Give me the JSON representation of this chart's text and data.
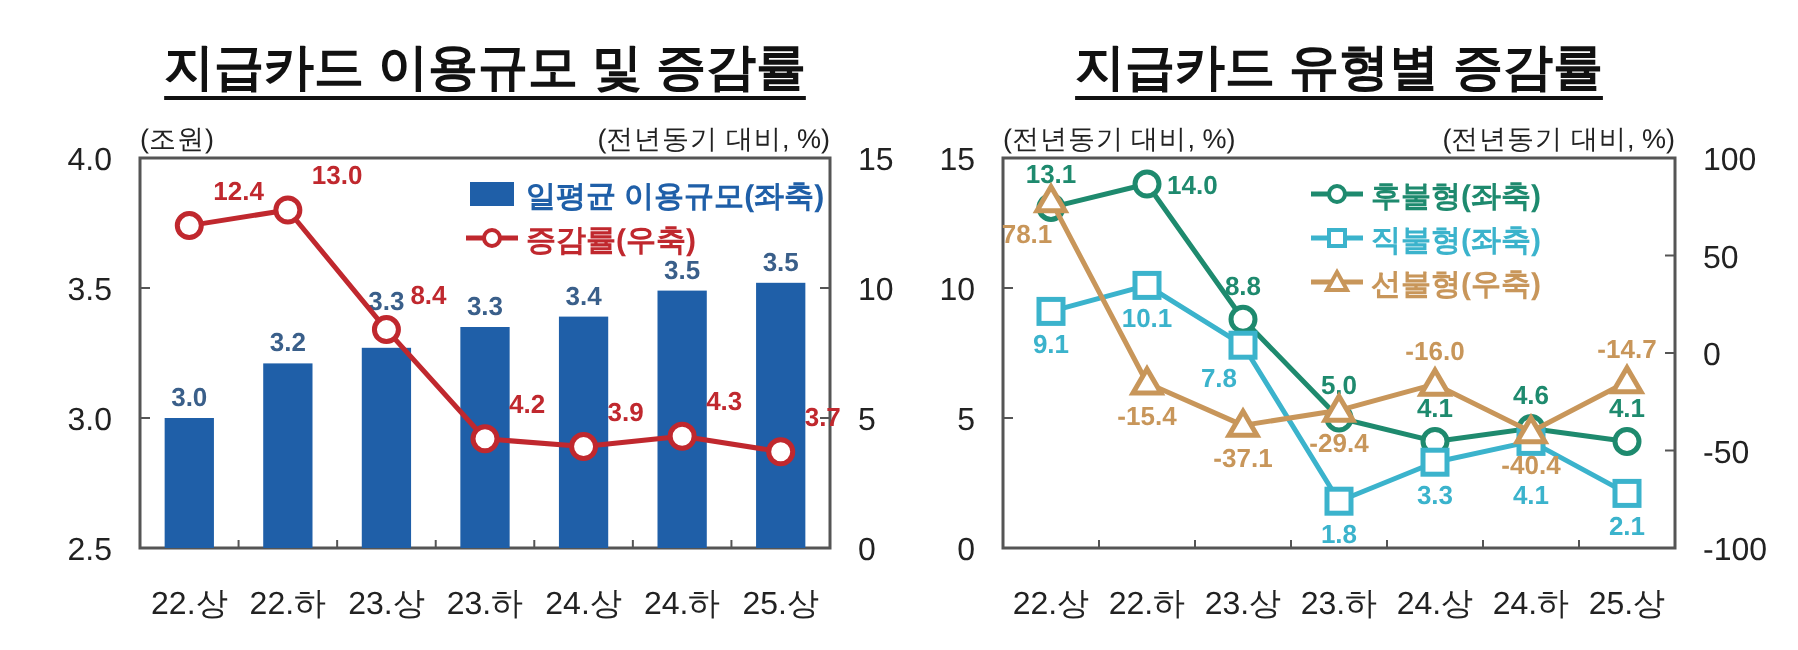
{
  "chart_data": [
    {
      "type": "bar",
      "title": "지급카드 이용규모 및 증감률",
      "ylabel": "(조원)",
      "y2label": "(전년동기 대비, %)",
      "categories": [
        "22.상",
        "22.하",
        "23.상",
        "23.하",
        "24.상",
        "24.하",
        "25.상"
      ],
      "series": [
        {
          "name": "일평균 이용규모(좌축)",
          "type": "bar",
          "color": "#1f5fa8",
          "values": [
            3.0,
            3.21,
            3.27,
            3.35,
            3.39,
            3.49,
            3.52
          ],
          "value_labels": [
            "3.0",
            "3.2",
            "3.3",
            "3.3",
            "3.4",
            "3.5",
            "3.5"
          ]
        },
        {
          "name": "증감률(우축)",
          "type": "line",
          "axis": "y2",
          "marker": "circle",
          "color": "#c0282e",
          "values": [
            12.4,
            13.0,
            8.4,
            4.2,
            3.9,
            4.3,
            3.7
          ],
          "value_labels": [
            "12.4",
            "13.0",
            "8.4",
            "4.2",
            "3.9",
            "4.3",
            "3.7"
          ]
        }
      ],
      "ylim": [
        2.5,
        4.0
      ],
      "yticks": [
        2.5,
        {
          "value": 3,
          "label": "3.0"
        },
        3.5,
        {
          "value": 4,
          "label": "4.0"
        }
      ],
      "y2lim": [
        0,
        15
      ],
      "y2ticks": [
        0,
        5,
        10,
        15
      ],
      "legend": "top right"
    },
    {
      "type": "line",
      "title": "지급카드 유형별 증감률",
      "ylabel": "(전년동기 대비, %)",
      "y2label": "(전년동기 대비, %)",
      "categories": [
        "22.상",
        "22.하",
        "23.상",
        "23.하",
        "24.상",
        "24.하",
        "25.상"
      ],
      "series": [
        {
          "name": "후불형(좌축)",
          "marker": "circle",
          "color": "#1e8a6e",
          "values": [
            13.1,
            14.0,
            8.8,
            5.0,
            4.1,
            4.6,
            4.1
          ],
          "value_labels": [
            "13.1",
            "14.0",
            "8.8",
            "5.0",
            "4.1",
            "4.6",
            "4.1"
          ]
        },
        {
          "name": "직불형(좌축)",
          "marker": "square",
          "color": "#3bb3cc",
          "values": [
            9.1,
            10.1,
            7.8,
            1.8,
            3.3,
            4.1,
            2.1
          ],
          "value_labels": [
            "9.1",
            "10.1",
            "7.8",
            "1.8",
            "3.3",
            "4.1",
            "2.1"
          ]
        },
        {
          "name": "선불형(우축)",
          "marker": "triangle",
          "axis": "y2",
          "color": "#c8965a",
          "values": [
            78.1,
            -15.4,
            -37.1,
            -29.4,
            -16.0,
            -40.4,
            -14.7
          ],
          "value_labels": [
            "78.1",
            "-15.4",
            "-37.1",
            "-29.4",
            "-16.0",
            "-40.4",
            "-14.7"
          ]
        }
      ],
      "ylim": [
        0,
        15
      ],
      "yticks": [
        0,
        5,
        10,
        15
      ],
      "y2lim": [
        -100,
        100
      ],
      "y2ticks": [
        -100,
        -50,
        0,
        50,
        100
      ],
      "legend": "top right"
    }
  ]
}
